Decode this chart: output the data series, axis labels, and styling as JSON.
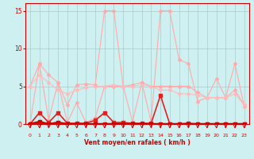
{
  "xlabel": "Vent moyen/en rafales ( km/h )",
  "background_color": "#cff0f0",
  "grid_color": "#aacccc",
  "xlim": [
    -0.5,
    23.5
  ],
  "ylim": [
    0,
    16
  ],
  "yticks": [
    0,
    5,
    10,
    15
  ],
  "xticks": [
    0,
    1,
    2,
    3,
    4,
    5,
    6,
    7,
    8,
    9,
    10,
    11,
    12,
    13,
    14,
    15,
    16,
    17,
    18,
    19,
    20,
    21,
    22,
    23
  ],
  "series": [
    {
      "x": [
        0,
        1,
        2,
        3,
        4,
        5,
        6,
        7,
        8,
        9,
        10,
        11,
        12,
        13,
        14,
        15,
        16,
        17,
        18,
        19,
        20,
        21,
        22,
        23
      ],
      "y": [
        5.0,
        8.0,
        6.5,
        5.5,
        2.5,
        5.2,
        5.3,
        5.2,
        15.0,
        15.0,
        5.0,
        5.2,
        5.5,
        5.0,
        5.0,
        5.0,
        5.0,
        5.0,
        4.2,
        3.5,
        3.5,
        3.5,
        4.5,
        2.5
      ],
      "color": "#ffaaaa",
      "linewidth": 0.8,
      "marker": "D",
      "markersize": 2.0,
      "zorder": 2
    },
    {
      "x": [
        0,
        1,
        2,
        3,
        4,
        5,
        6,
        7,
        8,
        9,
        10,
        11,
        12,
        13,
        14,
        15,
        16,
        17,
        18,
        19,
        20,
        21,
        22,
        23
      ],
      "y": [
        0.0,
        8.0,
        0.5,
        5.5,
        0.2,
        2.8,
        0.2,
        0.8,
        5.0,
        5.0,
        5.0,
        0.3,
        5.5,
        0.3,
        15.0,
        15.0,
        8.5,
        8.0,
        3.0,
        3.5,
        6.0,
        3.5,
        8.0,
        2.3
      ],
      "color": "#ffaaaa",
      "linewidth": 0.8,
      "marker": "D",
      "markersize": 2.0,
      "zorder": 2
    },
    {
      "x": [
        0,
        1,
        2,
        3,
        4,
        5,
        6,
        7,
        8,
        9,
        10,
        11,
        12,
        13,
        14,
        15,
        16,
        17,
        18,
        19,
        20,
        21,
        22,
        23
      ],
      "y": [
        5.0,
        6.5,
        5.5,
        4.5,
        4.0,
        4.5,
        4.8,
        5.0,
        5.0,
        5.2,
        5.0,
        5.0,
        5.2,
        5.0,
        4.5,
        4.5,
        4.0,
        4.0,
        3.8,
        3.5,
        3.5,
        3.5,
        4.0,
        2.5
      ],
      "color": "#ffbbbb",
      "linewidth": 0.8,
      "marker": "D",
      "markersize": 2.0,
      "zorder": 2
    },
    {
      "x": [
        0,
        1,
        2,
        3,
        4,
        5,
        6,
        7,
        8,
        9,
        10,
        11,
        12,
        13,
        14,
        15,
        16,
        17,
        18,
        19,
        20,
        21,
        22,
        23
      ],
      "y": [
        0.0,
        1.5,
        0.2,
        1.5,
        0.1,
        0.1,
        0.1,
        0.5,
        1.5,
        0.2,
        0.2,
        0.1,
        0.1,
        0.1,
        3.8,
        0.0,
        0.0,
        0.1,
        0.0,
        0.0,
        0.0,
        0.0,
        0.0,
        0.0
      ],
      "color": "#dd2222",
      "linewidth": 1.2,
      "marker": "s",
      "markersize": 2.5,
      "zorder": 3
    },
    {
      "x": [
        0,
        1,
        2,
        3,
        4,
        5,
        6,
        7,
        8,
        9,
        10,
        11,
        12,
        13,
        14,
        15,
        16,
        17,
        18,
        19,
        20,
        21,
        22,
        23
      ],
      "y": [
        0.0,
        0.3,
        0.0,
        0.2,
        0.0,
        0.0,
        0.0,
        0.0,
        0.0,
        0.0,
        0.0,
        0.0,
        0.0,
        0.0,
        0.0,
        0.0,
        0.0,
        0.0,
        0.0,
        0.0,
        0.0,
        0.0,
        0.0,
        0.0
      ],
      "color": "#cc0000",
      "linewidth": 1.8,
      "marker": "s",
      "markersize": 2.5,
      "zorder": 4
    },
    {
      "x": [
        0,
        1,
        2,
        3,
        4,
        5,
        6,
        7,
        8,
        9,
        10,
        11,
        12,
        13,
        14,
        15,
        16,
        17,
        18,
        19,
        20,
        21,
        22,
        23
      ],
      "y": [
        0.0,
        0.0,
        0.0,
        0.0,
        0.0,
        0.0,
        0.0,
        0.0,
        0.0,
        0.0,
        0.0,
        0.0,
        0.0,
        0.0,
        0.0,
        0.0,
        0.0,
        0.0,
        0.0,
        0.0,
        0.0,
        0.0,
        0.0,
        0.0
      ],
      "color": "#cc0000",
      "linewidth": 1.2,
      "marker": "s",
      "markersize": 2.0,
      "zorder": 4
    }
  ]
}
